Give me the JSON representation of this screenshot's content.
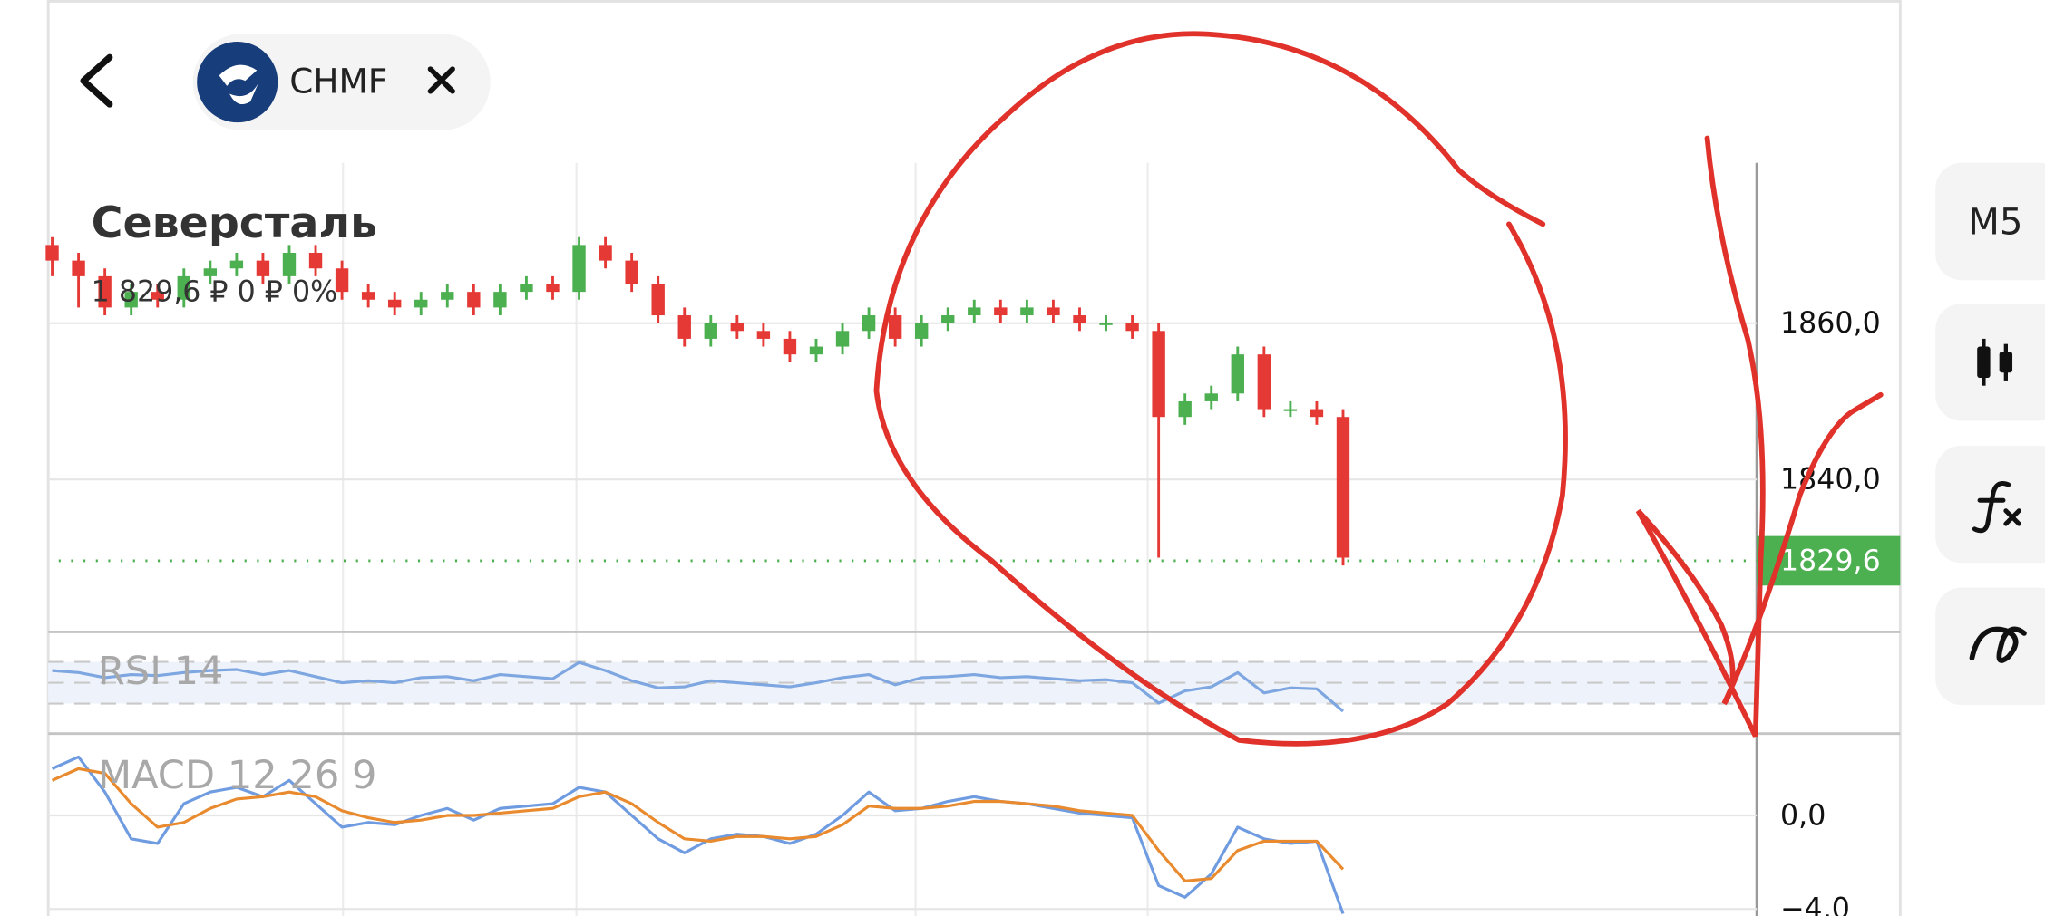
{
  "header": {
    "ticker": "CHMF"
  },
  "toolbar": {
    "timeframe": "M5"
  },
  "chart_data": [
    {
      "type": "candlestick",
      "title": "Северсталь",
      "subtitle": "1 829,6 ₽  0 ₽  0%",
      "ylim": [
        1820.5,
        1880.5
      ],
      "yticks": [
        {
          "value": 1860,
          "label": "1860,0"
        },
        {
          "value": 1840,
          "label": "1840,0"
        }
      ],
      "last_price": {
        "value": 1829.6,
        "label": "1829,6"
      },
      "up_color": "#4caf50",
      "down_color": "#e53935",
      "grid": true,
      "open": [
        1870,
        1868,
        1866,
        1862,
        1864,
        1863,
        1866,
        1867,
        1868,
        1866,
        1869,
        1867,
        1864,
        1863,
        1862,
        1863,
        1864,
        1862,
        1864,
        1865,
        1864,
        1870,
        1868,
        1865,
        1861,
        1858,
        1860,
        1859,
        1858,
        1856,
        1857,
        1859,
        1861,
        1858,
        1860,
        1861,
        1862,
        1861,
        1862,
        1861,
        1860,
        1860,
        1859,
        1848,
        1850,
        1851,
        1856,
        1849,
        1849,
        1848
      ],
      "high": [
        1871,
        1869,
        1867,
        1865,
        1865,
        1867,
        1868,
        1869,
        1869,
        1870,
        1870,
        1868,
        1865,
        1864,
        1864,
        1865,
        1865,
        1865,
        1866,
        1866,
        1871,
        1871,
        1869,
        1866,
        1862,
        1861,
        1861,
        1860,
        1859,
        1858,
        1860,
        1862,
        1862,
        1861,
        1862,
        1863,
        1863,
        1863,
        1863,
        1862,
        1861,
        1861,
        1860,
        1851,
        1852,
        1857,
        1857,
        1850,
        1850,
        1849
      ],
      "low": [
        1866,
        1862,
        1861,
        1861,
        1862,
        1862,
        1865,
        1866,
        1865,
        1865,
        1866,
        1863,
        1862,
        1861,
        1861,
        1862,
        1861,
        1861,
        1863,
        1863,
        1863,
        1867,
        1864,
        1860,
        1857,
        1857,
        1858,
        1857,
        1855,
        1855,
        1856,
        1858,
        1857,
        1857,
        1859,
        1860,
        1860,
        1860,
        1860,
        1859,
        1859,
        1858,
        1830,
        1847,
        1849,
        1850,
        1848,
        1848,
        1847,
        1829
      ],
      "close": [
        1868,
        1866,
        1862,
        1864,
        1863,
        1866,
        1867,
        1868,
        1866,
        1869,
        1867,
        1864,
        1863,
        1862,
        1863,
        1864,
        1862,
        1864,
        1865,
        1864,
        1870,
        1868,
        1865,
        1861,
        1858,
        1860,
        1859,
        1858,
        1856,
        1857,
        1859,
        1861,
        1858,
        1860,
        1861,
        1862,
        1861,
        1862,
        1861,
        1860,
        1860,
        1859,
        1848,
        1850,
        1851,
        1856,
        1849,
        1849,
        1848,
        1830
      ]
    },
    {
      "type": "line",
      "title": "RSI 14",
      "ylim": [
        0,
        100
      ],
      "series": [
        {
          "color": "#7ea6e0",
          "values": [
            62,
            60,
            55,
            58,
            57,
            60,
            62,
            63,
            58,
            62,
            56,
            50,
            52,
            50,
            55,
            56,
            52,
            58,
            56,
            54,
            70,
            62,
            52,
            45,
            46,
            52,
            50,
            48,
            46,
            50,
            55,
            58,
            48,
            55,
            56,
            58,
            55,
            56,
            54,
            52,
            53,
            50,
            30,
            42,
            46,
            60,
            40,
            45,
            44,
            22
          ]
        }
      ]
    },
    {
      "type": "line",
      "title": "MACD 12 26 9",
      "ylim": [
        -4.3,
        3.5
      ],
      "yticks": [
        {
          "value": 0,
          "label": "0,0"
        },
        {
          "value": -4,
          "label": "−4,0"
        }
      ],
      "grid": true,
      "series": [
        {
          "color": "#6f9be0",
          "values": [
            2,
            2.5,
            1,
            -1,
            -1.2,
            0.5,
            1,
            1.2,
            0.8,
            1.5,
            0.5,
            -0.5,
            -0.3,
            -0.4,
            0,
            0.3,
            -0.2,
            0.3,
            0.4,
            0.5,
            1.2,
            1,
            0,
            -1,
            -1.6,
            -1,
            -0.8,
            -0.9,
            -1.2,
            -0.8,
            0,
            1,
            0.2,
            0.3,
            0.6,
            0.8,
            0.6,
            0.5,
            0.3,
            0.1,
            0,
            -0.1,
            -3,
            -3.5,
            -2.5,
            -0.5,
            -1,
            -1.2,
            -1.1,
            -4.2
          ]
        },
        {
          "color": "#e88a2d",
          "values": [
            1.5,
            2,
            1.8,
            0.5,
            -0.5,
            -0.3,
            0.3,
            0.7,
            0.8,
            1,
            0.8,
            0.2,
            -0.1,
            -0.3,
            -0.2,
            0,
            0,
            0.1,
            0.2,
            0.3,
            0.8,
            1,
            0.5,
            -0.3,
            -1,
            -1.1,
            -0.9,
            -0.9,
            -1,
            -0.9,
            -0.4,
            0.4,
            0.3,
            0.3,
            0.4,
            0.6,
            0.6,
            0.5,
            0.4,
            0.2,
            0.1,
            0,
            -1.5,
            -2.8,
            -2.7,
            -1.5,
            -1.1,
            -1.1,
            -1.1,
            -2.3
          ]
        }
      ]
    }
  ]
}
